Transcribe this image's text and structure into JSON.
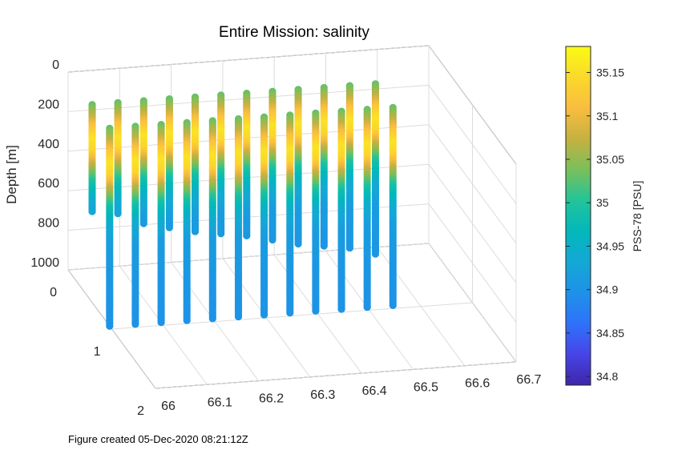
{
  "chart_data": {
    "type": "scatter3d",
    "title": "Entire Mission: salinity",
    "footer": "Figure created 05-Dec-2020 08:21:12Z",
    "x_axis": {
      "lim": [
        66,
        66.7
      ],
      "ticks": [
        "66",
        "66.1",
        "66.2",
        "66.3",
        "66.4",
        "66.5",
        "66.6",
        "66.7"
      ]
    },
    "y_axis": {
      "lim": [
        0,
        2
      ],
      "ticks": [
        "0",
        "1",
        "2"
      ]
    },
    "z_axis": {
      "label": "Depth [m]",
      "lim": [
        0,
        1000
      ],
      "reversed": true,
      "ticks": [
        "0",
        "200",
        "400",
        "600",
        "800",
        "1000"
      ]
    },
    "colorbar": {
      "label": "PSS-78 [PSU]",
      "lim": [
        34.79,
        35.18
      ],
      "ticks": [
        "34.8",
        "34.85",
        "34.9",
        "34.95",
        "35",
        "35.05",
        "35.1",
        "35.15"
      ],
      "colormap": [
        "#3e26a8",
        "#4744e8",
        "#2f72fa",
        "#1e91e8",
        "#14a8d5",
        "#02b8bb",
        "#22c499",
        "#7abf5a",
        "#c5b140",
        "#f9bd3f",
        "#fbd92b",
        "#f9fb15"
      ]
    },
    "profiles": [
      {
        "x": 66.0,
        "y": 0.55,
        "zmax": 540
      },
      {
        "x": 66.0,
        "y": 0.95,
        "zmax": 1000
      },
      {
        "x": 66.05,
        "y": 0.55,
        "zmax": 560
      },
      {
        "x": 66.05,
        "y": 0.95,
        "zmax": 1000
      },
      {
        "x": 66.1,
        "y": 0.55,
        "zmax": 620
      },
      {
        "x": 66.1,
        "y": 0.95,
        "zmax": 1000
      },
      {
        "x": 66.15,
        "y": 0.55,
        "zmax": 650
      },
      {
        "x": 66.15,
        "y": 0.95,
        "zmax": 1000
      },
      {
        "x": 66.2,
        "y": 0.55,
        "zmax": 680
      },
      {
        "x": 66.2,
        "y": 0.95,
        "zmax": 1000
      },
      {
        "x": 66.25,
        "y": 0.55,
        "zmax": 700
      },
      {
        "x": 66.25,
        "y": 0.95,
        "zmax": 1000
      },
      {
        "x": 66.3,
        "y": 0.55,
        "zmax": 720
      },
      {
        "x": 66.3,
        "y": 0.95,
        "zmax": 1000
      },
      {
        "x": 66.35,
        "y": 0.55,
        "zmax": 750
      },
      {
        "x": 66.35,
        "y": 0.95,
        "zmax": 1000
      },
      {
        "x": 66.4,
        "y": 0.55,
        "zmax": 780
      },
      {
        "x": 66.4,
        "y": 0.95,
        "zmax": 1000
      },
      {
        "x": 66.45,
        "y": 0.55,
        "zmax": 800
      },
      {
        "x": 66.45,
        "y": 0.95,
        "zmax": 1000
      },
      {
        "x": 66.5,
        "y": 0.55,
        "zmax": 820
      },
      {
        "x": 66.5,
        "y": 0.95,
        "zmax": 1000
      },
      {
        "x": 66.55,
        "y": 0.55,
        "zmax": 860
      },
      {
        "x": 66.55,
        "y": 0.95,
        "zmax": 1000
      }
    ],
    "salinity_profile": {
      "depth": [
        0,
        60,
        120,
        180,
        240,
        300,
        400,
        500,
        600,
        800,
        1000
      ],
      "salinity": [
        35.03,
        35.07,
        35.12,
        35.155,
        35.14,
        35.08,
        34.99,
        34.94,
        34.915,
        34.905,
        34.9
      ]
    }
  }
}
